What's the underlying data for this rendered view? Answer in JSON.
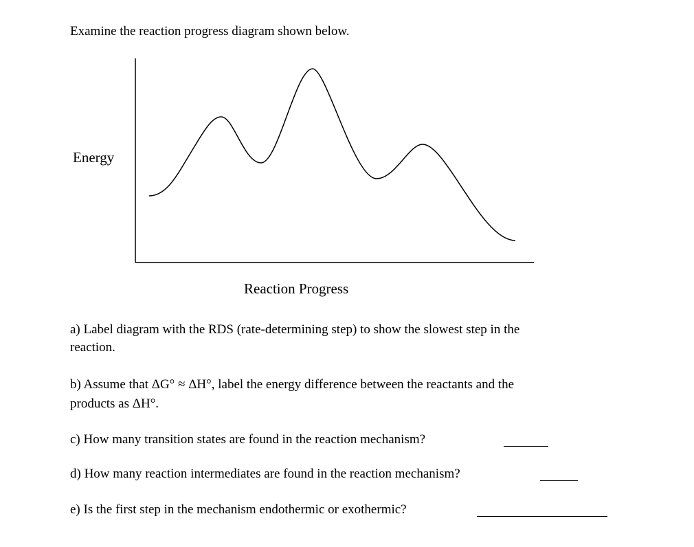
{
  "intro": "Examine the reaction progress diagram shown below.",
  "diagram": {
    "y_label": "Energy",
    "x_label": "Reaction Progress"
  },
  "questions": [
    {
      "lines": [
        "a) Label diagram with the RDS (rate-determining step) to show the slowest step in the",
        "reaction."
      ]
    },
    {
      "lines": [
        "b) Assume that ΔG° ≈ ΔH°, label the energy difference between the reactants and the",
        "products as ΔH°."
      ]
    },
    {
      "lines": [
        "c) How many transition states are found in the reaction mechanism?"
      ]
    },
    {
      "lines": [
        "d) How many reaction intermediates are found in the reaction mechanism?"
      ]
    },
    {
      "lines": [
        "e) Is the first step in the mechanism endothermic or exothermic?"
      ]
    }
  ]
}
